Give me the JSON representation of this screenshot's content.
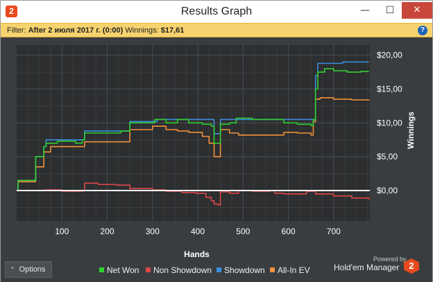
{
  "window": {
    "title": "Results Graph",
    "app_icon_label": "2",
    "minimize_glyph": "—",
    "maximize_glyph": "☐",
    "close_glyph": "✕"
  },
  "filter": {
    "prefix": "Filter:",
    "value": "After 2 июля 2017 г. (0:00)",
    "winnings_label": "Winnings:",
    "winnings_value": "$17,61",
    "help_glyph": "?"
  },
  "chart_data": {
    "type": "line",
    "xlabel": "Hands",
    "ylabel": "Winnings",
    "xlim": [
      0,
      780
    ],
    "ylim": [
      -4.5,
      21.5
    ],
    "x_ticks": [
      100,
      200,
      300,
      400,
      500,
      600,
      700
    ],
    "y_ticks": [
      {
        "value": 0,
        "label": "$0,00"
      },
      {
        "value": 5,
        "label": "$5,00"
      },
      {
        "value": 10,
        "label": "$10,00"
      },
      {
        "value": 15,
        "label": "$15,00"
      },
      {
        "value": 20,
        "label": "$20,00"
      }
    ],
    "grid": true,
    "zero_line": true,
    "series": [
      {
        "name": "Net Won",
        "color": "#2fd12f",
        "points": [
          [
            0,
            0
          ],
          [
            3,
            1.5
          ],
          [
            20,
            1.5
          ],
          [
            40,
            1.6
          ],
          [
            42,
            5
          ],
          [
            58,
            5
          ],
          [
            60,
            6.5
          ],
          [
            65,
            7
          ],
          [
            85,
            7
          ],
          [
            90,
            7.3
          ],
          [
            130,
            7
          ],
          [
            145,
            7.5
          ],
          [
            150,
            8.5
          ],
          [
            180,
            8.5
          ],
          [
            230,
            8.8
          ],
          [
            245,
            8.8
          ],
          [
            250,
            10
          ],
          [
            280,
            10
          ],
          [
            300,
            10
          ],
          [
            305,
            10.5
          ],
          [
            330,
            10
          ],
          [
            355,
            10.5
          ],
          [
            380,
            10
          ],
          [
            410,
            9.8
          ],
          [
            430,
            9.5
          ],
          [
            436,
            7
          ],
          [
            446,
            7
          ],
          [
            450,
            9.8
          ],
          [
            470,
            10
          ],
          [
            480,
            10
          ],
          [
            485,
            10.7
          ],
          [
            520,
            10.5
          ],
          [
            560,
            10.5
          ],
          [
            590,
            10
          ],
          [
            620,
            9.8
          ],
          [
            650,
            9.6
          ],
          [
            655,
            10.5
          ],
          [
            660,
            15
          ],
          [
            665,
            17.5
          ],
          [
            680,
            18
          ],
          [
            700,
            17.7
          ],
          [
            730,
            17.5
          ],
          [
            760,
            17.6
          ],
          [
            778,
            17.6
          ]
        ]
      },
      {
        "name": "Non Showdown",
        "color": "#e04848",
        "points": [
          [
            0,
            0
          ],
          [
            20,
            0
          ],
          [
            60,
            0.1
          ],
          [
            100,
            -0.1
          ],
          [
            140,
            -0.1
          ],
          [
            147,
            0
          ],
          [
            150,
            1.1
          ],
          [
            180,
            0.9
          ],
          [
            220,
            0.8
          ],
          [
            250,
            0.3
          ],
          [
            300,
            0.1
          ],
          [
            330,
            -0.1
          ],
          [
            365,
            -0.3
          ],
          [
            385,
            -0.3
          ],
          [
            395,
            -0.4
          ],
          [
            418,
            -1
          ],
          [
            430,
            -1.5
          ],
          [
            436,
            -2
          ],
          [
            445,
            -2.1
          ],
          [
            450,
            -0.2
          ],
          [
            470,
            -0.4
          ],
          [
            490,
            0
          ],
          [
            520,
            -0.1
          ],
          [
            560,
            0
          ],
          [
            570,
            -0.4
          ],
          [
            590,
            -0.5
          ],
          [
            620,
            -0.5
          ],
          [
            640,
            -0.1
          ],
          [
            660,
            -0.5
          ],
          [
            700,
            -0.8
          ],
          [
            740,
            -1.1
          ],
          [
            778,
            -1.3
          ]
        ]
      },
      {
        "name": "Showdown",
        "color": "#3c8fe0",
        "points": [
          [
            0,
            0
          ],
          [
            3,
            1.5
          ],
          [
            40,
            1.5
          ],
          [
            42,
            5
          ],
          [
            58,
            5
          ],
          [
            60,
            6.5
          ],
          [
            65,
            7.5
          ],
          [
            145,
            7.5
          ],
          [
            150,
            8.8
          ],
          [
            245,
            8.8
          ],
          [
            250,
            10.2
          ],
          [
            305,
            10.2
          ],
          [
            310,
            10.5
          ],
          [
            430,
            10.5
          ],
          [
            436,
            8.4
          ],
          [
            446,
            8.4
          ],
          [
            450,
            10.5
          ],
          [
            655,
            10.5
          ],
          [
            660,
            17
          ],
          [
            665,
            18.8
          ],
          [
            700,
            18.8
          ],
          [
            720,
            19
          ],
          [
            778,
            19
          ]
        ]
      },
      {
        "name": "All-In EV",
        "color": "#f2923a",
        "points": [
          [
            0,
            0
          ],
          [
            3,
            1.3
          ],
          [
            40,
            1.3
          ],
          [
            42,
            3.5
          ],
          [
            58,
            3.5
          ],
          [
            60,
            5.7
          ],
          [
            70,
            5.7
          ],
          [
            75,
            6.5
          ],
          [
            145,
            6.5
          ],
          [
            150,
            7.2
          ],
          [
            245,
            7.2
          ],
          [
            250,
            9
          ],
          [
            280,
            9
          ],
          [
            300,
            9.5
          ],
          [
            330,
            9
          ],
          [
            355,
            8.8
          ],
          [
            380,
            8.6
          ],
          [
            410,
            8
          ],
          [
            425,
            7
          ],
          [
            436,
            5
          ],
          [
            446,
            5
          ],
          [
            450,
            9
          ],
          [
            470,
            8.5
          ],
          [
            490,
            8.2
          ],
          [
            520,
            8.2
          ],
          [
            560,
            8.2
          ],
          [
            590,
            8.6
          ],
          [
            620,
            8.5
          ],
          [
            650,
            8.2
          ],
          [
            655,
            10.2
          ],
          [
            660,
            13.5
          ],
          [
            670,
            13.7
          ],
          [
            700,
            13.5
          ],
          [
            740,
            13.4
          ],
          [
            778,
            13.3
          ]
        ]
      }
    ]
  },
  "bottom": {
    "options_chevron": "⌃",
    "options_label": "Options",
    "legend": [
      {
        "label": "Net Won",
        "color": "#2fd12f"
      },
      {
        "label": "Non Showdown",
        "color": "#e04848"
      },
      {
        "label": "Showdown",
        "color": "#3c8fe0"
      },
      {
        "label": "All-In EV",
        "color": "#f2923a"
      }
    ],
    "powered_by": "Powered by",
    "brand": "Hold'em Manager",
    "brand_logo_label": "2"
  }
}
